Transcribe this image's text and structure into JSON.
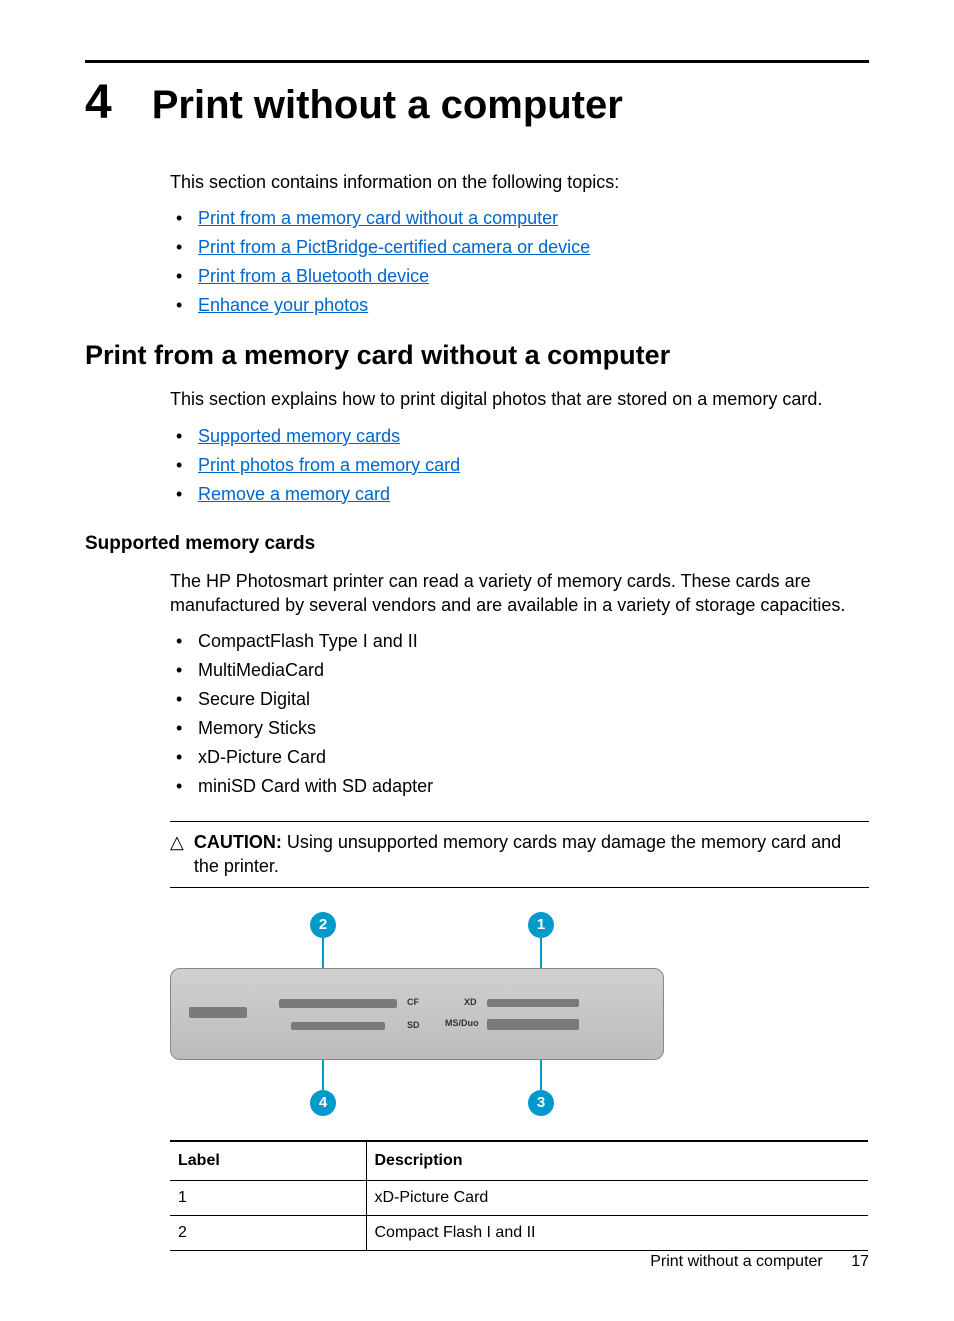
{
  "chapter": {
    "number": "4",
    "title": "Print without a computer"
  },
  "intro": "This section contains information on the following topics:",
  "topic_links": [
    "Print from a memory card without a computer",
    "Print from a PictBridge-certified camera or device",
    "Print from a Bluetooth device",
    "Enhance your photos"
  ],
  "section_h2": "Print from a memory card without a computer",
  "section_intro": "This section explains how to print digital photos that are stored on a memory card.",
  "section_links": [
    "Supported memory cards",
    "Print photos from a memory card",
    "Remove a memory card"
  ],
  "subsection_h3": "Supported memory cards",
  "subsection_body": "The HP Photosmart printer can read a variety of memory cards. These cards are manufactured by several vendors and are available in a variety of storage capacities.",
  "card_types": [
    "CompactFlash Type I and II",
    "MultiMediaCard",
    "Secure Digital",
    "Memory Sticks",
    "xD-Picture Card",
    "miniSD Card with SD adapter"
  ],
  "caution": {
    "icon": "△",
    "label": "CAUTION:",
    "text": "Using unsupported memory cards may damage the memory card and the printer."
  },
  "diagram": {
    "callout_top": [
      "2",
      "1"
    ],
    "callout_bottom": [
      "4",
      "3"
    ],
    "labels": {
      "cf": "CF",
      "sd": "SD",
      "xd": "XD",
      "ms": "MS/Duo"
    },
    "callout_color": "#0099cc",
    "body_color_top": "#d0d0d0",
    "body_color_bottom": "#bcbcbc"
  },
  "table": {
    "headers": [
      "Label",
      "Description"
    ],
    "rows": [
      [
        "1",
        "xD-Picture Card"
      ],
      [
        "2",
        "Compact Flash I and II"
      ]
    ]
  },
  "footer": {
    "title": "Print without a computer",
    "page": "17"
  },
  "colors": {
    "link": "#0066cc",
    "text": "#000000",
    "background": "#ffffff"
  },
  "fonts": {
    "body_size_pt": 13,
    "h1_size_pt": 30,
    "h2_size_pt": 20,
    "h3_size_pt": 14
  }
}
